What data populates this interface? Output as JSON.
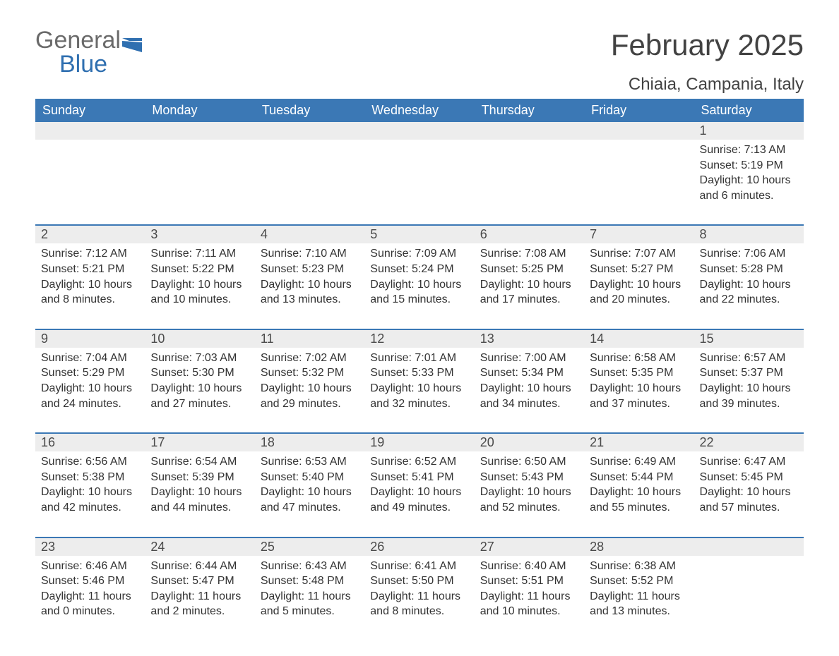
{
  "logo": {
    "word1": "General",
    "word2": "Blue"
  },
  "title": "February 2025",
  "location": "Chiaia, Campania, Italy",
  "colors": {
    "header_bg": "#3b78b5",
    "band_bg": "#ededed",
    "text": "#333333",
    "logo_gray": "#6a6a6a",
    "logo_blue": "#2f6fb0"
  },
  "day_headers": [
    "Sunday",
    "Monday",
    "Tuesday",
    "Wednesday",
    "Thursday",
    "Friday",
    "Saturday"
  ],
  "weeks": [
    [
      null,
      null,
      null,
      null,
      null,
      null,
      {
        "n": "1",
        "sunrise": "Sunrise: 7:13 AM",
        "sunset": "Sunset: 5:19 PM",
        "daylight": "Daylight: 10 hours and 6 minutes."
      }
    ],
    [
      {
        "n": "2",
        "sunrise": "Sunrise: 7:12 AM",
        "sunset": "Sunset: 5:21 PM",
        "daylight": "Daylight: 10 hours and 8 minutes."
      },
      {
        "n": "3",
        "sunrise": "Sunrise: 7:11 AM",
        "sunset": "Sunset: 5:22 PM",
        "daylight": "Daylight: 10 hours and 10 minutes."
      },
      {
        "n": "4",
        "sunrise": "Sunrise: 7:10 AM",
        "sunset": "Sunset: 5:23 PM",
        "daylight": "Daylight: 10 hours and 13 minutes."
      },
      {
        "n": "5",
        "sunrise": "Sunrise: 7:09 AM",
        "sunset": "Sunset: 5:24 PM",
        "daylight": "Daylight: 10 hours and 15 minutes."
      },
      {
        "n": "6",
        "sunrise": "Sunrise: 7:08 AM",
        "sunset": "Sunset: 5:25 PM",
        "daylight": "Daylight: 10 hours and 17 minutes."
      },
      {
        "n": "7",
        "sunrise": "Sunrise: 7:07 AM",
        "sunset": "Sunset: 5:27 PM",
        "daylight": "Daylight: 10 hours and 20 minutes."
      },
      {
        "n": "8",
        "sunrise": "Sunrise: 7:06 AM",
        "sunset": "Sunset: 5:28 PM",
        "daylight": "Daylight: 10 hours and 22 minutes."
      }
    ],
    [
      {
        "n": "9",
        "sunrise": "Sunrise: 7:04 AM",
        "sunset": "Sunset: 5:29 PM",
        "daylight": "Daylight: 10 hours and 24 minutes."
      },
      {
        "n": "10",
        "sunrise": "Sunrise: 7:03 AM",
        "sunset": "Sunset: 5:30 PM",
        "daylight": "Daylight: 10 hours and 27 minutes."
      },
      {
        "n": "11",
        "sunrise": "Sunrise: 7:02 AM",
        "sunset": "Sunset: 5:32 PM",
        "daylight": "Daylight: 10 hours and 29 minutes."
      },
      {
        "n": "12",
        "sunrise": "Sunrise: 7:01 AM",
        "sunset": "Sunset: 5:33 PM",
        "daylight": "Daylight: 10 hours and 32 minutes."
      },
      {
        "n": "13",
        "sunrise": "Sunrise: 7:00 AM",
        "sunset": "Sunset: 5:34 PM",
        "daylight": "Daylight: 10 hours and 34 minutes."
      },
      {
        "n": "14",
        "sunrise": "Sunrise: 6:58 AM",
        "sunset": "Sunset: 5:35 PM",
        "daylight": "Daylight: 10 hours and 37 minutes."
      },
      {
        "n": "15",
        "sunrise": "Sunrise: 6:57 AM",
        "sunset": "Sunset: 5:37 PM",
        "daylight": "Daylight: 10 hours and 39 minutes."
      }
    ],
    [
      {
        "n": "16",
        "sunrise": "Sunrise: 6:56 AM",
        "sunset": "Sunset: 5:38 PM",
        "daylight": "Daylight: 10 hours and 42 minutes."
      },
      {
        "n": "17",
        "sunrise": "Sunrise: 6:54 AM",
        "sunset": "Sunset: 5:39 PM",
        "daylight": "Daylight: 10 hours and 44 minutes."
      },
      {
        "n": "18",
        "sunrise": "Sunrise: 6:53 AM",
        "sunset": "Sunset: 5:40 PM",
        "daylight": "Daylight: 10 hours and 47 minutes."
      },
      {
        "n": "19",
        "sunrise": "Sunrise: 6:52 AM",
        "sunset": "Sunset: 5:41 PM",
        "daylight": "Daylight: 10 hours and 49 minutes."
      },
      {
        "n": "20",
        "sunrise": "Sunrise: 6:50 AM",
        "sunset": "Sunset: 5:43 PM",
        "daylight": "Daylight: 10 hours and 52 minutes."
      },
      {
        "n": "21",
        "sunrise": "Sunrise: 6:49 AM",
        "sunset": "Sunset: 5:44 PM",
        "daylight": "Daylight: 10 hours and 55 minutes."
      },
      {
        "n": "22",
        "sunrise": "Sunrise: 6:47 AM",
        "sunset": "Sunset: 5:45 PM",
        "daylight": "Daylight: 10 hours and 57 minutes."
      }
    ],
    [
      {
        "n": "23",
        "sunrise": "Sunrise: 6:46 AM",
        "sunset": "Sunset: 5:46 PM",
        "daylight": "Daylight: 11 hours and 0 minutes."
      },
      {
        "n": "24",
        "sunrise": "Sunrise: 6:44 AM",
        "sunset": "Sunset: 5:47 PM",
        "daylight": "Daylight: 11 hours and 2 minutes."
      },
      {
        "n": "25",
        "sunrise": "Sunrise: 6:43 AM",
        "sunset": "Sunset: 5:48 PM",
        "daylight": "Daylight: 11 hours and 5 minutes."
      },
      {
        "n": "26",
        "sunrise": "Sunrise: 6:41 AM",
        "sunset": "Sunset: 5:50 PM",
        "daylight": "Daylight: 11 hours and 8 minutes."
      },
      {
        "n": "27",
        "sunrise": "Sunrise: 6:40 AM",
        "sunset": "Sunset: 5:51 PM",
        "daylight": "Daylight: 11 hours and 10 minutes."
      },
      {
        "n": "28",
        "sunrise": "Sunrise: 6:38 AM",
        "sunset": "Sunset: 5:52 PM",
        "daylight": "Daylight: 11 hours and 13 minutes."
      },
      null
    ]
  ]
}
